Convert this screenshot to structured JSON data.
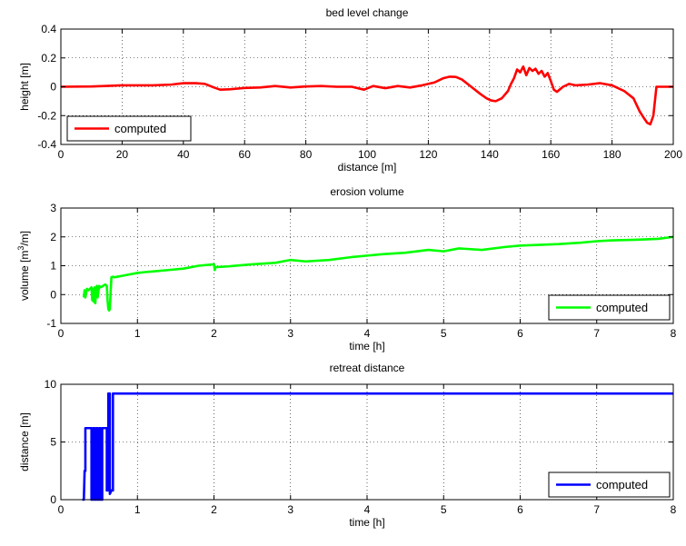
{
  "chart_data": [
    {
      "type": "line",
      "title": "bed level change",
      "xlabel": "distance [m]",
      "ylabel": "height [m]",
      "xlim": [
        0,
        200
      ],
      "ylim": [
        -0.4,
        0.4
      ],
      "xticks": [
        0,
        20,
        40,
        60,
        80,
        100,
        120,
        140,
        160,
        180,
        200
      ],
      "yticks": [
        -0.4,
        -0.2,
        0,
        0.2,
        0.4
      ],
      "xtick_labels": [
        "0",
        "20",
        "40",
        "60",
        "80",
        "100",
        "120",
        "140",
        "160",
        "180",
        "200"
      ],
      "ytick_labels": [
        "-0.4",
        "-0.2",
        "0",
        "0.2",
        "0.4"
      ],
      "grid": true,
      "legend_position": "bottom-left",
      "series": [
        {
          "name": "computed",
          "color": "#ff0000",
          "x": [
            0,
            10,
            20,
            30,
            36,
            40,
            44,
            47,
            50,
            52,
            55,
            60,
            65,
            70,
            75,
            80,
            85,
            90,
            95,
            99,
            102,
            106,
            110,
            114,
            118,
            122,
            125,
            127,
            129,
            131,
            134,
            137,
            139,
            140.5,
            142,
            144,
            146,
            147,
            148,
            149,
            150,
            151,
            152,
            153,
            154,
            155,
            156,
            157,
            158,
            159,
            160,
            161,
            162,
            164,
            166,
            168,
            172,
            176,
            180,
            184,
            187,
            189,
            190.5,
            191.5,
            192.5,
            193.5,
            194.5,
            197,
            200
          ],
          "y": [
            0.0,
            0.002,
            0.01,
            0.01,
            0.015,
            0.025,
            0.025,
            0.02,
            -0.005,
            -0.02,
            -0.018,
            -0.008,
            -0.005,
            0.005,
            -0.005,
            0.002,
            0.005,
            0.0,
            0.0,
            -0.02,
            0.005,
            -0.01,
            0.005,
            -0.005,
            0.01,
            0.03,
            0.06,
            0.07,
            0.068,
            0.05,
            0.0,
            -0.05,
            -0.08,
            -0.095,
            -0.1,
            -0.08,
            -0.03,
            0.02,
            0.06,
            0.12,
            0.1,
            0.14,
            0.08,
            0.13,
            0.11,
            0.125,
            0.09,
            0.11,
            0.07,
            0.095,
            0.04,
            -0.02,
            -0.035,
            0.0,
            0.02,
            0.01,
            0.015,
            0.025,
            0.01,
            -0.03,
            -0.08,
            -0.17,
            -0.22,
            -0.25,
            -0.26,
            -0.2,
            0.0,
            0.0,
            0.0
          ]
        }
      ]
    },
    {
      "type": "line",
      "title": "erosion volume",
      "xlabel": "time [h]",
      "ylabel": "volume [m",
      "ylabel_superscript": "3",
      "ylabel_suffix": "/m]",
      "xlim": [
        0,
        8
      ],
      "ylim": [
        -1,
        3
      ],
      "xticks": [
        0,
        1,
        2,
        3,
        4,
        5,
        6,
        7,
        8
      ],
      "yticks": [
        -1,
        0,
        1,
        2,
        3
      ],
      "xtick_labels": [
        "0",
        "1",
        "2",
        "3",
        "4",
        "5",
        "6",
        "7",
        "8"
      ],
      "ytick_labels": [
        "-1",
        "0",
        "1",
        "2",
        "3"
      ],
      "grid": true,
      "legend_position": "bottom-right",
      "series": [
        {
          "name": "computed",
          "color": "#00ff00",
          "x": [
            0.3,
            0.31,
            0.32,
            0.34,
            0.36,
            0.38,
            0.4,
            0.41,
            0.42,
            0.43,
            0.44,
            0.45,
            0.46,
            0.47,
            0.48,
            0.5,
            0.52,
            0.55,
            0.58,
            0.6,
            0.61,
            0.62,
            0.63,
            0.64,
            0.65,
            0.66,
            0.67,
            0.68,
            0.7,
            0.8,
            0.9,
            1.0,
            1.1,
            1.2,
            1.4,
            1.6,
            1.8,
            2.0,
            2.01,
            2.02,
            2.2,
            2.5,
            2.8,
            3.0,
            3.2,
            3.5,
            3.8,
            4.0,
            4.2,
            4.5,
            4.8,
            5.0,
            5.2,
            5.5,
            5.8,
            6.0,
            6.2,
            6.5,
            6.8,
            7.0,
            7.2,
            7.5,
            7.8,
            8.0
          ],
          "y": [
            -0.1,
            0.15,
            -0.1,
            0.2,
            0.15,
            0.2,
            0.25,
            -0.2,
            0.2,
            -0.25,
            0.25,
            -0.3,
            0.2,
            0.3,
            -0.1,
            0.3,
            0.25,
            0.3,
            0.35,
            0.3,
            -0.2,
            -0.5,
            -0.55,
            -0.5,
            0.1,
            0.6,
            0.6,
            0.62,
            0.6,
            0.65,
            0.7,
            0.75,
            0.78,
            0.8,
            0.85,
            0.9,
            1.0,
            1.05,
            0.85,
            0.95,
            0.98,
            1.05,
            1.1,
            1.2,
            1.15,
            1.2,
            1.3,
            1.35,
            1.4,
            1.45,
            1.55,
            1.5,
            1.6,
            1.55,
            1.65,
            1.7,
            1.72,
            1.75,
            1.8,
            1.85,
            1.88,
            1.9,
            1.93,
            2.0
          ]
        }
      ]
    },
    {
      "type": "line",
      "title": "retreat distance",
      "xlabel": "time [h]",
      "ylabel": "distance [m]",
      "xlim": [
        0,
        8
      ],
      "ylim": [
        0,
        10
      ],
      "xticks": [
        0,
        1,
        2,
        3,
        4,
        5,
        6,
        7,
        8
      ],
      "yticks": [
        0,
        5,
        10
      ],
      "xtick_labels": [
        "0",
        "1",
        "2",
        "3",
        "4",
        "5",
        "6",
        "7",
        "8"
      ],
      "ytick_labels": [
        "0",
        "5",
        "10"
      ],
      "grid": true,
      "legend_position": "bottom-right",
      "series": [
        {
          "name": "computed",
          "color": "#0000ff",
          "x": [
            0.28,
            0.3,
            0.31,
            0.32,
            0.32,
            0.34,
            0.34,
            0.4,
            0.4,
            0.41,
            0.42,
            0.42,
            0.44,
            0.44,
            0.46,
            0.46,
            0.48,
            0.48,
            0.5,
            0.5,
            0.52,
            0.52,
            0.54,
            0.54,
            0.6,
            0.6,
            0.61,
            0.62,
            0.62,
            0.64,
            0.64,
            0.66,
            0.68,
            0.68,
            0.7,
            8.0
          ],
          "y": [
            0,
            0,
            2.5,
            2.5,
            6.2,
            6.2,
            6.2,
            6.2,
            0,
            0,
            0,
            6.2,
            6.2,
            0,
            0,
            6.2,
            6.2,
            0,
            0,
            6.2,
            6.2,
            0,
            0,
            6.2,
            6.2,
            0.8,
            0.8,
            0.8,
            9.2,
            9.2,
            0.5,
            0.8,
            0.8,
            9.2,
            9.2,
            9.2
          ]
        }
      ]
    }
  ]
}
